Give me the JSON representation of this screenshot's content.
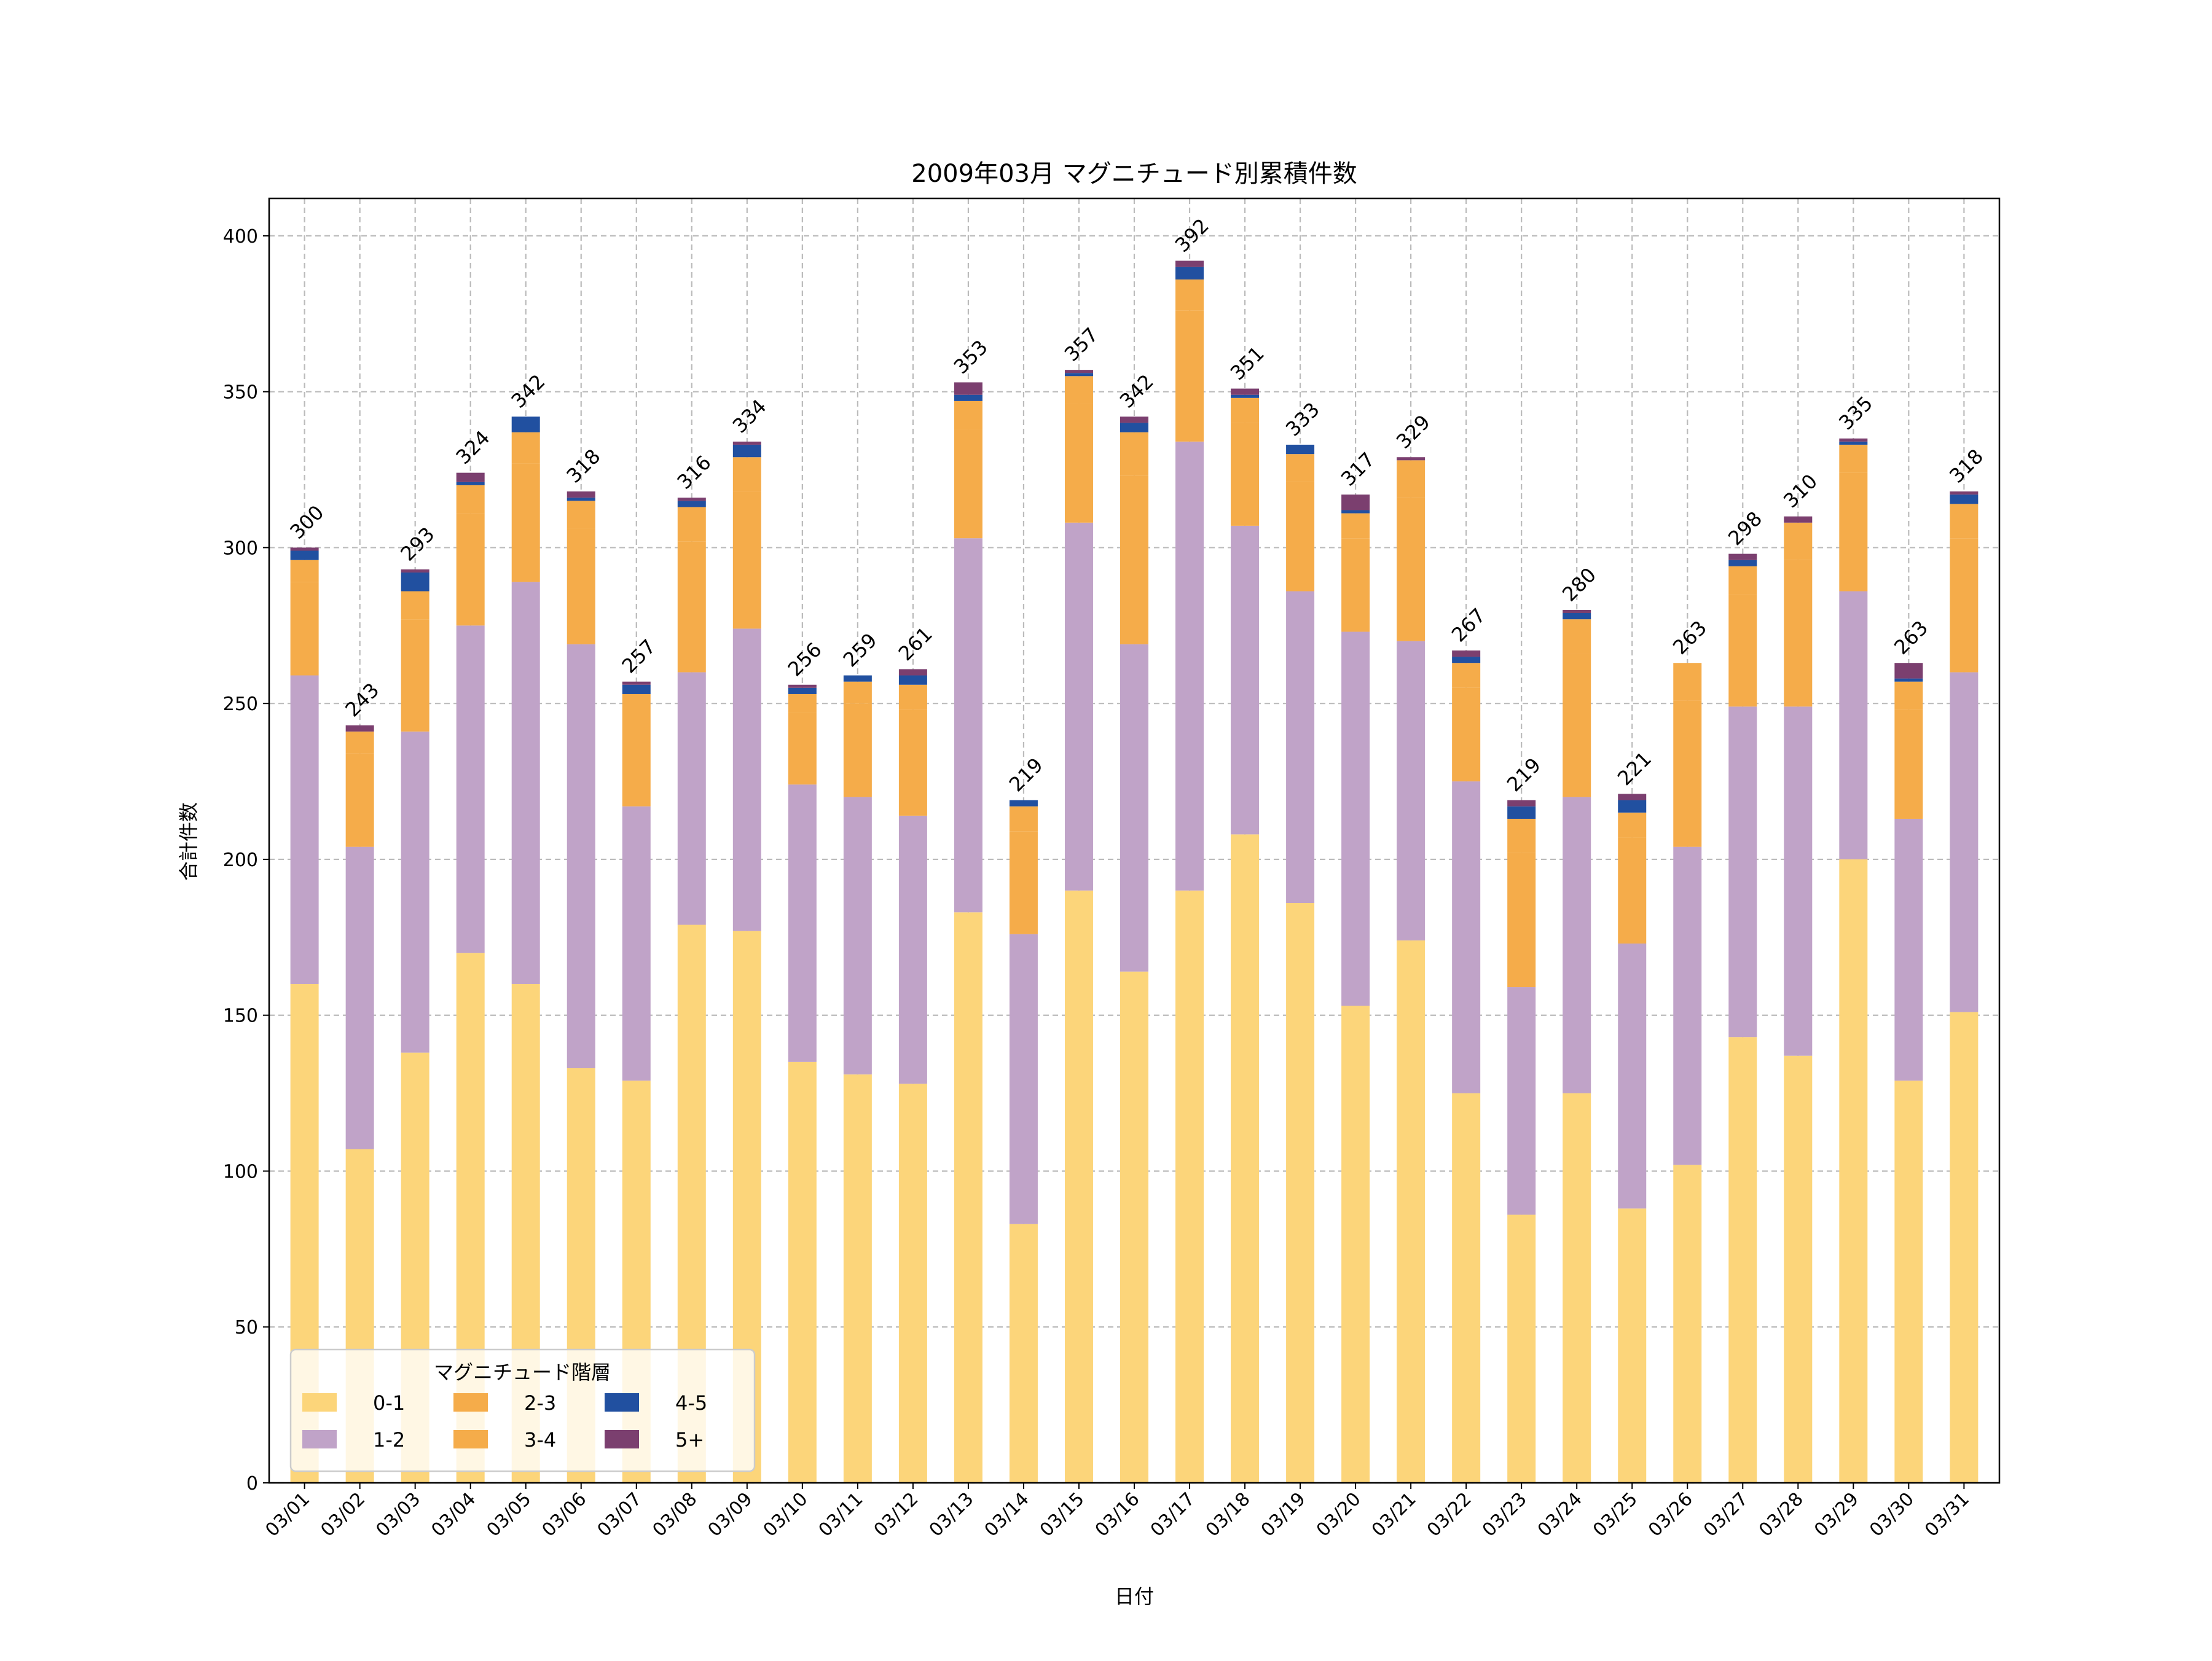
{
  "chart_data": {
    "type": "bar",
    "stacked": true,
    "title": "2009年03月 マグニチュード別累積件数",
    "xlabel": "日付",
    "ylabel": "合計件数",
    "ylim": [
      0,
      412
    ],
    "yticks": [
      0,
      50,
      100,
      150,
      200,
      250,
      300,
      350,
      400
    ],
    "grid": true,
    "legend": {
      "title": "マグニチュード階層",
      "placement": "lower-left",
      "columns": 3
    },
    "categories": [
      "03/01",
      "03/02",
      "03/03",
      "03/04",
      "03/05",
      "03/06",
      "03/07",
      "03/08",
      "03/09",
      "03/10",
      "03/11",
      "03/12",
      "03/13",
      "03/14",
      "03/15",
      "03/16",
      "03/17",
      "03/18",
      "03/19",
      "03/20",
      "03/21",
      "03/22",
      "03/23",
      "03/24",
      "03/25",
      "03/26",
      "03/27",
      "03/28",
      "03/29",
      "03/30",
      "03/31"
    ],
    "series": [
      {
        "name": "0-1",
        "color": "#fcd57a",
        "values": [
          160,
          107,
          138,
          170,
          160,
          133,
          129,
          179,
          177,
          135,
          131,
          128,
          183,
          83,
          190,
          164,
          190,
          208,
          186,
          153,
          174,
          125,
          86,
          125,
          88,
          102,
          143,
          137,
          200,
          129,
          151
        ]
      },
      {
        "name": "1-2",
        "color": "#c0a3c8",
        "values": [
          99,
          97,
          103,
          105,
          129,
          136,
          88,
          81,
          97,
          89,
          89,
          86,
          120,
          93,
          118,
          105,
          144,
          99,
          100,
          120,
          96,
          100,
          73,
          95,
          85,
          102,
          106,
          112,
          86,
          84,
          109
        ]
      },
      {
        "name": "2-3",
        "color": "#f5ac4a",
        "values": [
          30,
          30,
          36,
          36,
          38,
          37,
          29,
          42,
          44,
          23,
          30,
          34,
          35,
          33,
          38,
          54,
          42,
          33,
          35,
          30,
          46,
          30,
          43,
          46,
          34,
          47,
          36,
          47,
          38,
          35,
          43
        ]
      },
      {
        "name": "3-4",
        "color": "#f5ac4a",
        "values": [
          7,
          7,
          9,
          9,
          10,
          9,
          7,
          11,
          11,
          6,
          7,
          8,
          9,
          8,
          9,
          14,
          10,
          8,
          9,
          8,
          12,
          8,
          11,
          11,
          8,
          12,
          9,
          12,
          9,
          9,
          11
        ]
      },
      {
        "name": "4-5",
        "color": "#2150a0",
        "values": [
          3,
          0,
          6,
          1,
          5,
          1,
          3,
          2,
          4,
          2,
          2,
          3,
          2,
          2,
          1,
          3,
          4,
          1,
          3,
          1,
          0,
          2,
          4,
          2,
          4,
          0,
          2,
          0,
          1,
          1,
          3
        ]
      },
      {
        "name": "5+",
        "color": "#7b3f6f",
        "values": [
          1,
          2,
          1,
          3,
          0,
          2,
          1,
          1,
          1,
          1,
          0,
          2,
          4,
          0,
          1,
          2,
          2,
          2,
          0,
          5,
          1,
          2,
          2,
          1,
          2,
          0,
          2,
          2,
          1,
          5,
          1
        ]
      }
    ],
    "totals": [
      300,
      243,
      293,
      324,
      342,
      318,
      257,
      316,
      334,
      256,
      259,
      261,
      353,
      219,
      357,
      342,
      392,
      351,
      333,
      317,
      329,
      267,
      219,
      280,
      221,
      263,
      298,
      310,
      335,
      263,
      318
    ]
  }
}
